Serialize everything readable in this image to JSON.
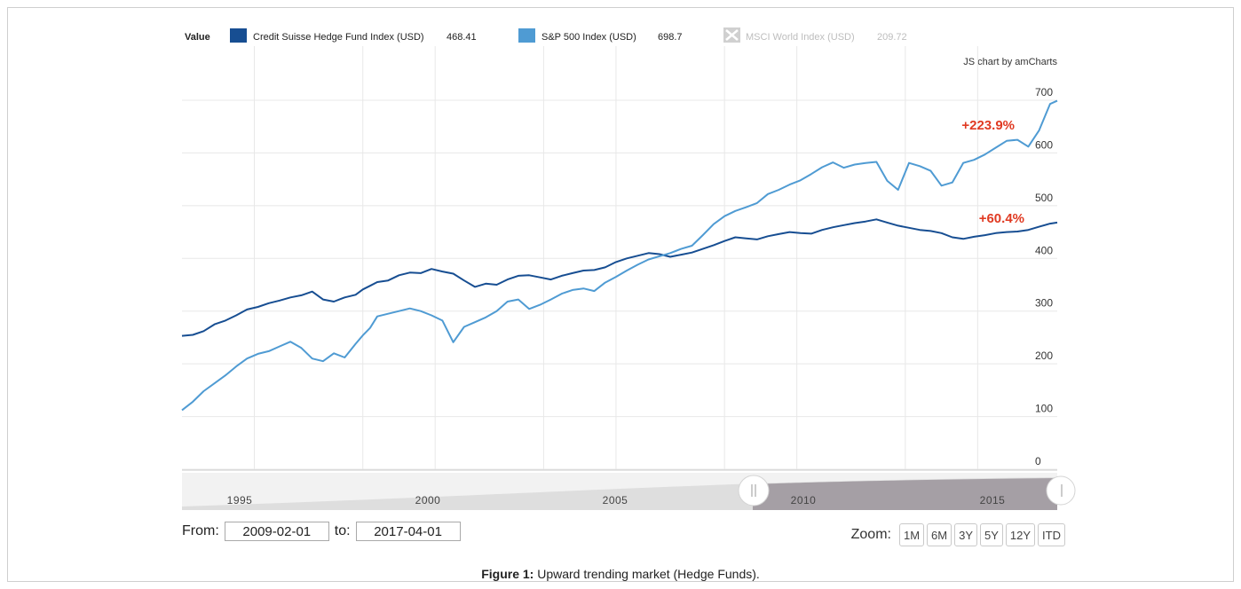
{
  "legend": {
    "title": "Value",
    "items": [
      {
        "label": "Credit Suisse Hedge Fund Index (USD)",
        "value": "468.41",
        "color": "#174e92",
        "enabled": true
      },
      {
        "label": "S&P 500 Index (USD)",
        "value": "698.7",
        "color": "#4f9bd3",
        "enabled": true
      },
      {
        "label": "MSCI World Index (USD)",
        "value": "209.72",
        "color": "#c8c8c8",
        "enabled": false
      }
    ]
  },
  "credit_text": "JS chart by amCharts",
  "annotations": {
    "sp500_change": "+223.9%",
    "hedge_change": "+60.4%"
  },
  "range": {
    "from_label": "From:",
    "from_value": "2009-02-01",
    "to_label": "to:",
    "to_value": "2017-04-01"
  },
  "zoom": {
    "label": "Zoom:",
    "buttons": [
      "1M",
      "6M",
      "3Y",
      "5Y",
      "12Y",
      "ITD"
    ]
  },
  "navigator": {
    "years": [
      "1995",
      "2000",
      "2005",
      "2010",
      "2015"
    ]
  },
  "caption": {
    "bold": "Figure 1:",
    "text": " Upward trending market (Hedge Funds)."
  },
  "chart_data": {
    "type": "line",
    "ylim": [
      0,
      700
    ],
    "yticks": [
      0,
      100,
      200,
      300,
      400,
      500,
      600,
      700
    ],
    "xlim": [
      1993.0,
      2017.2
    ],
    "xgrid_years": [
      1995,
      1998,
      2000,
      2003,
      2005,
      2008,
      2010,
      2013,
      2015
    ],
    "grid": true,
    "legend_position": "top",
    "colors": {
      "hedge": "#174e92",
      "sp500": "#4f9bd3"
    },
    "series": [
      {
        "name": "Credit Suisse Hedge Fund Index (USD)",
        "key": "hedge",
        "x": [
          1993.0,
          1993.3,
          1993.6,
          1993.9,
          1994.2,
          1994.5,
          1994.8,
          1995.1,
          1995.4,
          1995.7,
          1996.0,
          1996.3,
          1996.6,
          1996.9,
          1997.2,
          1997.5,
          1997.8,
          1998.0,
          1998.2,
          1998.4,
          1998.7,
          1999.0,
          1999.3,
          1999.6,
          1999.9,
          2000.2,
          2000.5,
          2000.8,
          2001.1,
          2001.4,
          2001.7,
          2002.0,
          2002.3,
          2002.6,
          2002.9,
          2003.2,
          2003.5,
          2003.8,
          2004.1,
          2004.4,
          2004.7,
          2005.0,
          2005.3,
          2005.6,
          2005.9,
          2006.2,
          2006.5,
          2006.8,
          2007.1,
          2007.4,
          2007.7,
          2008.0,
          2008.3,
          2008.6,
          2008.9,
          2009.2,
          2009.5,
          2009.8,
          2010.1,
          2010.4,
          2010.7,
          2011.0,
          2011.3,
          2011.6,
          2011.9,
          2012.2,
          2012.5,
          2012.8,
          2013.1,
          2013.4,
          2013.7,
          2014.0,
          2014.3,
          2014.6,
          2014.9,
          2015.2,
          2015.5,
          2015.8,
          2016.1,
          2016.4,
          2016.7,
          2017.0,
          2017.2
        ],
        "y": [
          253,
          255,
          262,
          275,
          282,
          292,
          303,
          308,
          315,
          320,
          326,
          330,
          337,
          322,
          318,
          326,
          331,
          341,
          348,
          355,
          358,
          368,
          373,
          372,
          380,
          375,
          371,
          358,
          346,
          352,
          350,
          360,
          367,
          368,
          364,
          360,
          367,
          372,
          377,
          378,
          383,
          393,
          400,
          405,
          410,
          408,
          403,
          407,
          411,
          418,
          425,
          433,
          440,
          438,
          436,
          442,
          446,
          450,
          448,
          447,
          454,
          459,
          463,
          467,
          470,
          474,
          468,
          462,
          458,
          454,
          452,
          448,
          440,
          437,
          441,
          444,
          448,
          450,
          451,
          454,
          460,
          466,
          468
        ]
      },
      {
        "name": "S&P 500 Index (USD)",
        "key": "sp500",
        "x": [
          1993.0,
          1993.3,
          1993.6,
          1993.9,
          1994.2,
          1994.5,
          1994.8,
          1995.1,
          1995.4,
          1995.7,
          1996.0,
          1996.3,
          1996.6,
          1996.9,
          1997.2,
          1997.5,
          1997.8,
          1998.0,
          1998.2,
          1998.4,
          1998.7,
          1999.0,
          1999.3,
          1999.6,
          1999.9,
          2000.2,
          2000.5,
          2000.8,
          2001.1,
          2001.4,
          2001.7,
          2002.0,
          2002.3,
          2002.6,
          2002.9,
          2003.2,
          2003.5,
          2003.8,
          2004.1,
          2004.4,
          2004.7,
          2005.0,
          2005.3,
          2005.6,
          2005.9,
          2006.2,
          2006.5,
          2006.8,
          2007.1,
          2007.4,
          2007.7,
          2008.0,
          2008.3,
          2008.6,
          2008.9,
          2009.2,
          2009.5,
          2009.8,
          2010.1,
          2010.4,
          2010.7,
          2011.0,
          2011.3,
          2011.6,
          2011.9,
          2012.2,
          2012.5,
          2012.8,
          2013.1,
          2013.4,
          2013.7,
          2014.0,
          2014.3,
          2014.6,
          2014.9,
          2015.2,
          2015.5,
          2015.8,
          2016.1,
          2016.4,
          2016.7,
          2017.0,
          2017.2
        ],
        "y": [
          112,
          128,
          148,
          163,
          178,
          195,
          210,
          219,
          224,
          233,
          242,
          230,
          210,
          205,
          220,
          212,
          238,
          254,
          268,
          290,
          295,
          300,
          305,
          300,
          292,
          282,
          241,
          270,
          279,
          288,
          300,
          318,
          322,
          304,
          312,
          322,
          333,
          340,
          343,
          338,
          354,
          365,
          377,
          388,
          398,
          404,
          410,
          418,
          424,
          444,
          465,
          480,
          490,
          497,
          505,
          522,
          530,
          540,
          548,
          560,
          573,
          582,
          572,
          578,
          581,
          583,
          547,
          530,
          581,
          575,
          566,
          538,
          544,
          581,
          587,
          597,
          610,
          623,
          625,
          612,
          643,
          693,
          699
        ]
      }
    ]
  }
}
